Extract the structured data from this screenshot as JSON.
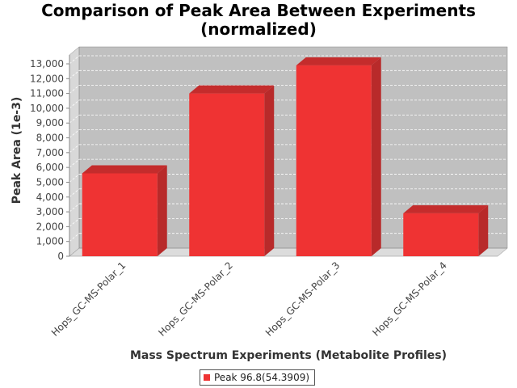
{
  "chart_data": {
    "type": "bar",
    "title_line1": "Comparison of Peak Area Between Experiments",
    "title_line2": "(normalized)",
    "xlabel": "Mass Spectrum Experiments (Metabolite Profiles)",
    "ylabel": "Peak Area (1e-3)",
    "categories": [
      "Hops_GC-MS-Polar_1",
      "Hops_GC-MS-Polar_2",
      "Hops_GC-MS-Polar_3",
      "Hops_GC-MS-Polar_4"
    ],
    "series": [
      {
        "name": "Peak 96.8(54.3909)",
        "values": [
          5600,
          11000,
          12900,
          2900
        ]
      }
    ],
    "yticks": [
      0,
      1000,
      2000,
      3000,
      4000,
      5000,
      6000,
      7000,
      8000,
      9000,
      10000,
      11000,
      12000,
      13000
    ],
    "ytick_labels": [
      "0",
      "1,000",
      "2,000",
      "3,000",
      "4,000",
      "5,000",
      "6,000",
      "7,000",
      "8,000",
      "9,000",
      "10,000",
      "11,000",
      "12,000",
      "13,000"
    ],
    "ylim": [
      0,
      13600
    ],
    "grid": true,
    "legend_position": "bottom-center",
    "colors": {
      "bar_front": "#ef3333",
      "bar_side": "#b82a2a",
      "bar_top": "#c42c2c",
      "plot_bg": "#c0c0c0",
      "wall_side": "#d8d8d8",
      "floor": "#dcdcdc",
      "grid": "#ffffff"
    }
  }
}
